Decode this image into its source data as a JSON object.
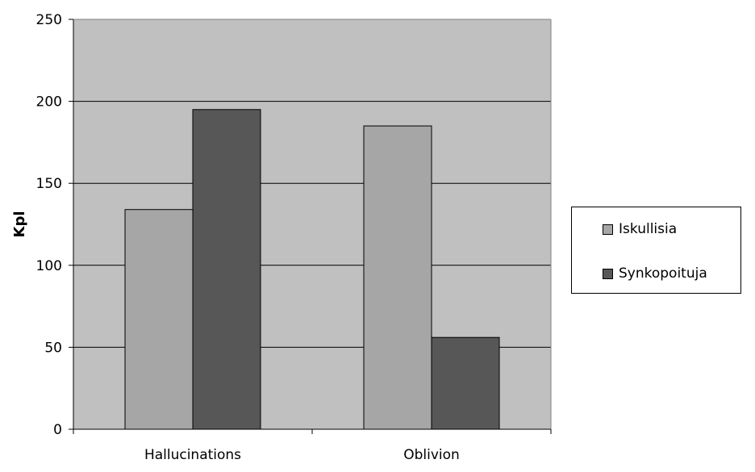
{
  "chart_data": {
    "type": "bar",
    "categories": [
      "Hallucinations",
      "Oblivion"
    ],
    "series": [
      {
        "name": "Iskullisia",
        "values": [
          134,
          185
        ],
        "color": "#a6a6a6"
      },
      {
        "name": "Synkopoituja",
        "values": [
          195,
          56
        ],
        "color": "#575757"
      }
    ],
    "xlabel": "",
    "ylabel": "Kpl",
    "ylim": [
      0,
      250
    ],
    "yticks": [
      0,
      50,
      100,
      150,
      200,
      250
    ],
    "grid": true,
    "plot_background": "#c0c0c0",
    "legend_position": "right"
  }
}
